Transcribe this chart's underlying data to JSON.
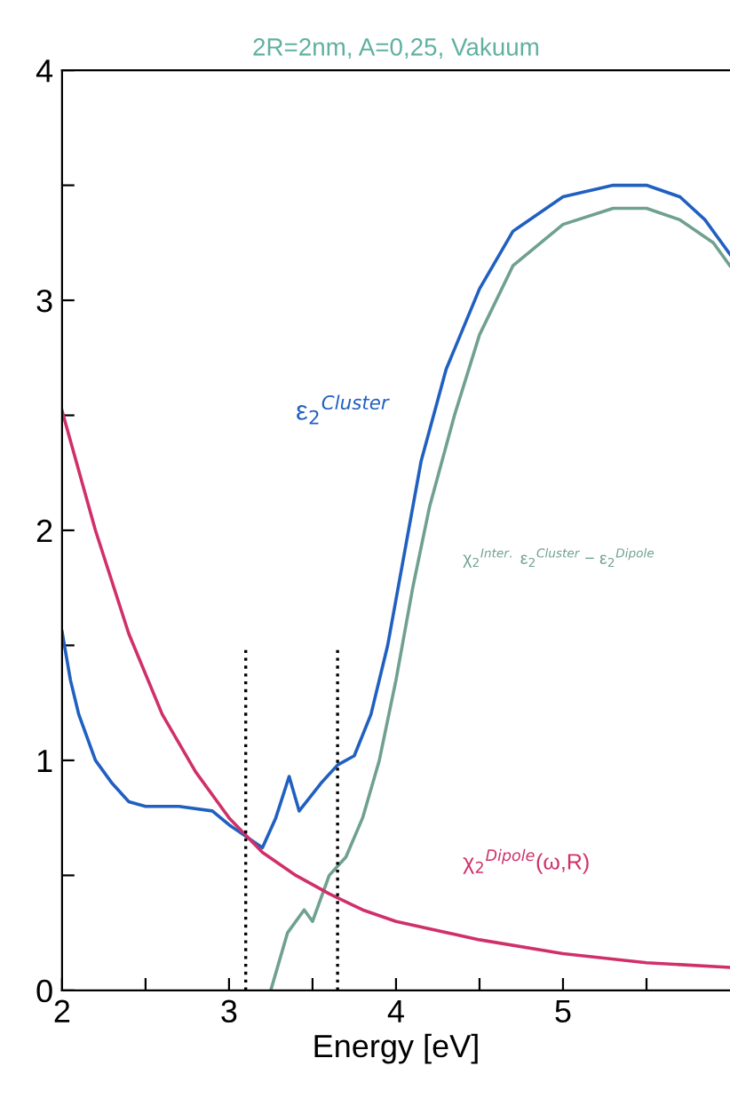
{
  "chart_data": {
    "type": "line",
    "title": "2R=2nm, A=0,25, Vakuum",
    "xlabel": "Energy [eV]",
    "xlim": [
      2,
      6
    ],
    "ylim": [
      0,
      4
    ],
    "xticks": [
      2,
      {
        "value": 2.5,
        "label": null
      },
      3,
      {
        "value": 3.5,
        "label": null
      },
      4,
      {
        "value": 4.5,
        "label": null
      },
      5,
      {
        "value": 5.5,
        "label": null
      }
    ],
    "yticks": [
      0,
      {
        "value": 0.5,
        "label": null
      },
      1,
      {
        "value": 1.5,
        "label": null
      },
      2,
      {
        "value": 2.5,
        "label": null
      },
      3,
      {
        "value": 3.5,
        "label": null
      },
      4
    ],
    "grid": false,
    "series": [
      {
        "color": "#2060c0",
        "x": [
          2.0,
          2.05,
          2.1,
          2.2,
          2.3,
          2.4,
          2.5,
          2.7,
          2.9,
          3.0,
          3.1,
          3.2,
          3.28,
          3.36,
          3.42,
          3.55,
          3.65,
          3.75,
          3.85,
          3.95,
          4.05,
          4.15,
          4.3,
          4.5,
          4.7,
          5.0,
          5.3,
          5.5,
          5.7,
          5.85,
          6.0
        ],
        "values": [
          1.56,
          1.35,
          1.2,
          1.0,
          0.9,
          0.82,
          0.8,
          0.8,
          0.78,
          0.72,
          0.67,
          0.62,
          0.75,
          0.93,
          0.78,
          0.9,
          0.98,
          1.02,
          1.2,
          1.5,
          1.9,
          2.3,
          2.7,
          3.05,
          3.3,
          3.45,
          3.5,
          3.5,
          3.45,
          3.35,
          3.2
        ]
      },
      {
        "color": "#70a090",
        "x": [
          3.25,
          3.35,
          3.45,
          3.5,
          3.6,
          3.7,
          3.8,
          3.9,
          4.0,
          4.1,
          4.2,
          4.35,
          4.5,
          4.7,
          5.0,
          5.3,
          5.5,
          5.7,
          5.9,
          6.0
        ],
        "values": [
          0,
          0.25,
          0.35,
          0.3,
          0.5,
          0.58,
          0.75,
          1.0,
          1.35,
          1.75,
          2.1,
          2.5,
          2.85,
          3.15,
          3.33,
          3.4,
          3.4,
          3.35,
          3.25,
          3.15
        ]
      },
      {
        "color": "#d0306a",
        "x": [
          2.0,
          2.2,
          2.4,
          2.6,
          2.8,
          3.0,
          3.2,
          3.4,
          3.6,
          3.8,
          4.0,
          4.5,
          5.0,
          5.5,
          6.0
        ],
        "values": [
          2.52,
          2.0,
          1.55,
          1.2,
          0.95,
          0.75,
          0.6,
          0.5,
          0.42,
          0.35,
          0.3,
          0.22,
          0.16,
          0.12,
          0.1
        ]
      },
      {
        "color": "#000000",
        "line_style": "dotted",
        "x": [
          3.1,
          3.1
        ],
        "values": [
          0,
          1.5
        ]
      },
      {
        "color": "#000000",
        "line_style": "dotted",
        "x": [
          3.65,
          3.65
        ],
        "values": [
          0,
          1.5
        ]
      }
    ],
    "annotations": [
      "ε$_{2}$$^{Cluster}$",
      "χ$_{2}$$^{Inter.}$ ε$_{2}$$^{Cluster}$ − ε$_{2}$$^{Dipole}$",
      "χ$_{2}$$^{Dipole}$(ω,R)"
    ]
  }
}
